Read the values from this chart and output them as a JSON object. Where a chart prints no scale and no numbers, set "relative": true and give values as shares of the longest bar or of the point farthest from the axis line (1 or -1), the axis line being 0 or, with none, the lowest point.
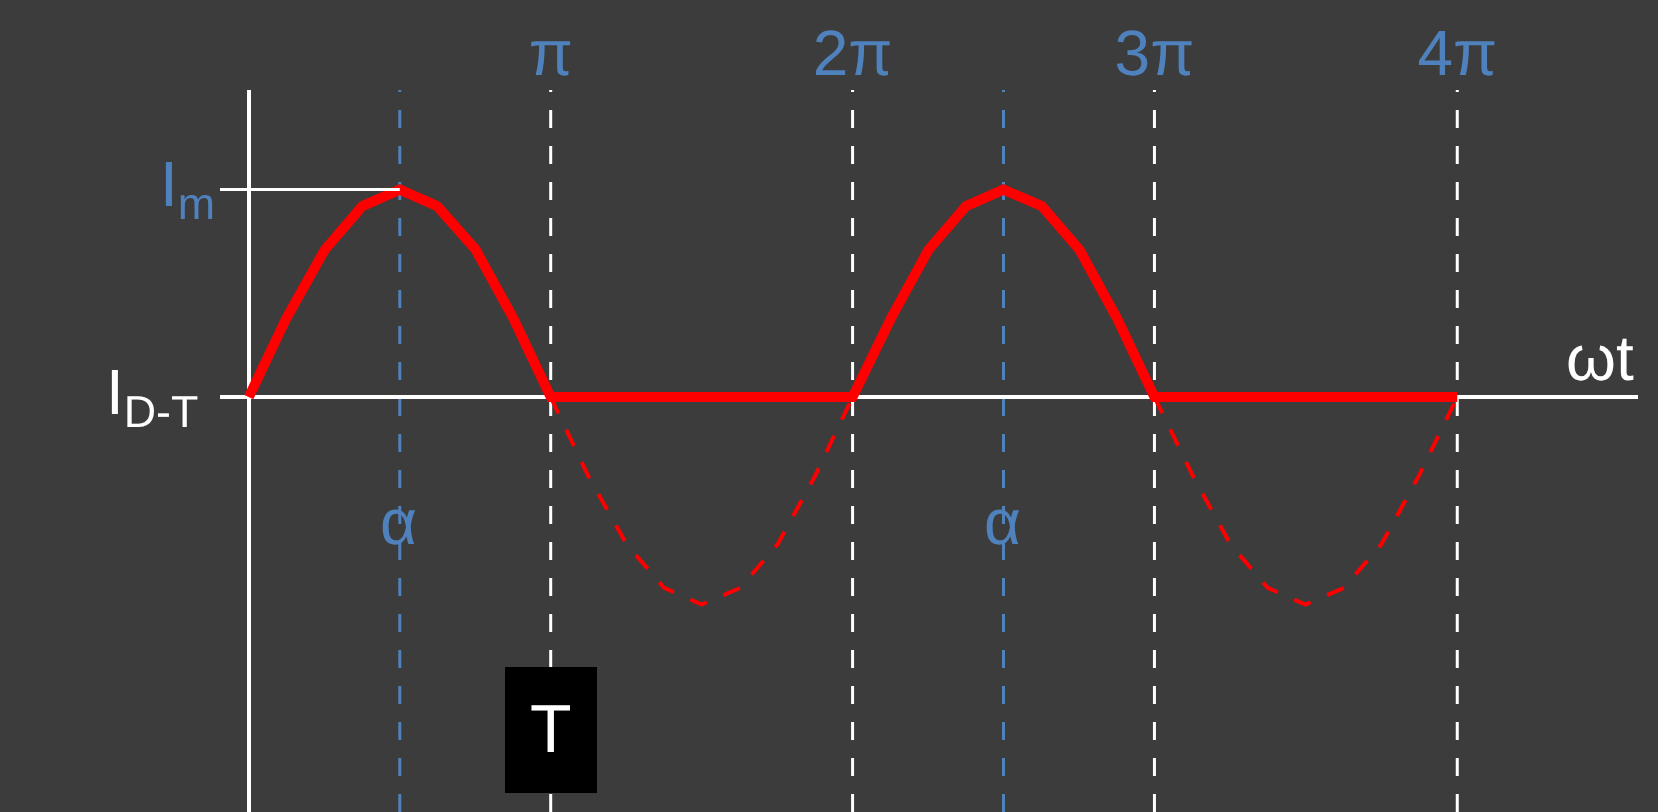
{
  "chart_data": {
    "type": "line",
    "relative": true,
    "x": [
      0,
      0.39,
      0.79,
      1.18,
      1.57,
      1.96,
      2.36,
      2.75,
      3.14,
      3.53,
      3.93,
      4.32,
      4.71,
      5.11,
      5.5,
      5.89,
      6.28,
      6.68,
      7.07,
      7.46,
      7.85,
      8.25,
      8.64,
      9.03,
      9.42,
      9.82,
      10.21,
      10.6,
      10.99,
      11.39,
      11.78,
      12.17,
      12.57
    ],
    "series": [
      {
        "color": "#ff0000",
        "line_style": "solid",
        "values": [
          0,
          0.38,
          0.71,
          0.92,
          1,
          0.92,
          0.71,
          0.38,
          0,
          0,
          0,
          0,
          0,
          0,
          0,
          0,
          0,
          0.38,
          0.71,
          0.92,
          1,
          0.92,
          0.71,
          0.38,
          0,
          0,
          0,
          0,
          0,
          0,
          0,
          0,
          0
        ]
      },
      {
        "color": "#ff0000",
        "line_style": "dashed",
        "values": [
          null,
          null,
          null,
          null,
          null,
          null,
          null,
          null,
          0,
          -0.38,
          -0.71,
          -0.92,
          -1,
          -0.92,
          -0.71,
          -0.38,
          0,
          null,
          null,
          null,
          null,
          null,
          null,
          null,
          0,
          -0.38,
          -0.71,
          -0.92,
          -1,
          -0.92,
          -0.71,
          -0.38,
          0
        ]
      }
    ],
    "xlabel": "ωt",
    "xlim": [
      -0.3,
      14.45
    ],
    "xticks": [
      {
        "value": 3.14,
        "label": "π"
      },
      {
        "value": 6.28,
        "label": "2π"
      },
      {
        "value": 9.42,
        "label": "3π"
      },
      {
        "value": 12.57,
        "label": "4π"
      }
    ],
    "tick_labels": "x",
    "ref_lines": [
      {
        "axis": "x",
        "value": 3.14,
        "color": "#ffffff",
        "line_style": "dashed"
      },
      {
        "axis": "x",
        "value": 6.28,
        "color": "#ffffff",
        "line_style": "dashed"
      },
      {
        "axis": "x",
        "value": 9.42,
        "color": "#ffffff",
        "line_style": "dashed"
      },
      {
        "axis": "x",
        "value": 12.57,
        "color": "#ffffff",
        "line_style": "dashed"
      },
      {
        "axis": "x",
        "value": 1.57,
        "color": "#4f81bd",
        "line_style": "dashed"
      },
      {
        "axis": "x",
        "value": 7.85,
        "color": "#4f81bd",
        "line_style": "dashed"
      }
    ],
    "ylabel": "I$_{D-T}$",
    "annotations": [
      {
        "text": "I$_{m}$",
        "x": 1.57,
        "y": 1
      },
      {
        "text": "α",
        "x": 1.57,
        "y": -0.6
      },
      {
        "text": "α",
        "x": 7.85,
        "y": -0.6
      },
      {
        "text": "T",
        "x": 3.14,
        "y": -1.6
      }
    ],
    "grid": false,
    "marker": "none"
  }
}
